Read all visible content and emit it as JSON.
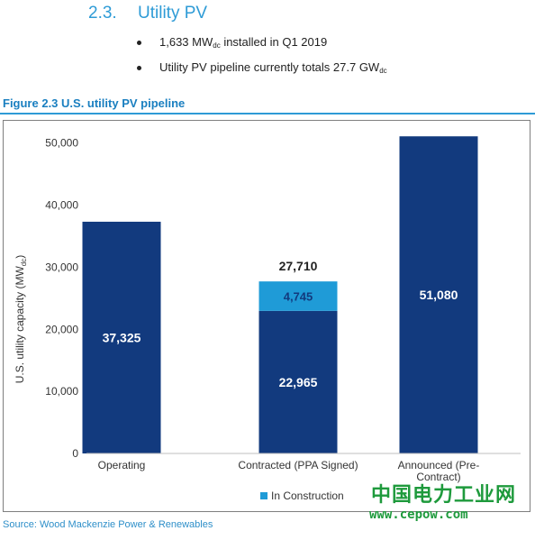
{
  "section": {
    "number": "2.3.",
    "title": "Utility PV"
  },
  "bullets": [
    {
      "pre": "1,633 MW",
      "sub": "dc",
      "post": " installed in Q1 2019"
    },
    {
      "pre": "Utility PV pipeline currently totals 27.7 GW",
      "sub": "dc",
      "post": ""
    }
  ],
  "figure_title": "Figure 2.3 U.S. utility PV pipeline",
  "source": "Source: Wood Mackenzie Power & Renewables",
  "watermark": {
    "line1": "中国电力工业网",
    "line2": "www.cepow.com"
  },
  "colors": {
    "dark_bar": "#123a7e",
    "construction": "#1f9bd7",
    "accent": "#2e9bd6",
    "watermark": "#1e9a3c"
  },
  "chart_data": {
    "type": "bar",
    "stacked": true,
    "ylabel": "U.S. utility capacity (MW",
    "ylabel_sub": "dc",
    "ylim": [
      0,
      53000
    ],
    "yticks": [
      0,
      10000,
      20000,
      30000,
      40000,
      50000
    ],
    "ytick_labels": [
      "0",
      "10,000",
      "20,000",
      "30,000",
      "40,000",
      "50,000"
    ],
    "grid": false,
    "legend_position": "bottom",
    "categories": [
      "Operating",
      "Contracted (PPA Signed)",
      "Announced (Pre-Contract)"
    ],
    "category_lines": [
      [
        "Operating"
      ],
      [
        "Contracted (PPA Signed)"
      ],
      [
        "Announced (Pre-",
        "Contract)"
      ]
    ],
    "series": [
      {
        "values": [
          37325,
          22965,
          51080
        ],
        "labels": [
          "37,325",
          "22,965",
          "51,080"
        ],
        "color": "#123a7e"
      },
      {
        "name": "In Construction",
        "values": [
          0,
          4745,
          0
        ],
        "labels": [
          "",
          "4,745",
          ""
        ],
        "color": "#1f9bd7"
      }
    ],
    "totals": [
      null,
      27710,
      null
    ],
    "total_labels": [
      "",
      "27,710",
      ""
    ]
  }
}
